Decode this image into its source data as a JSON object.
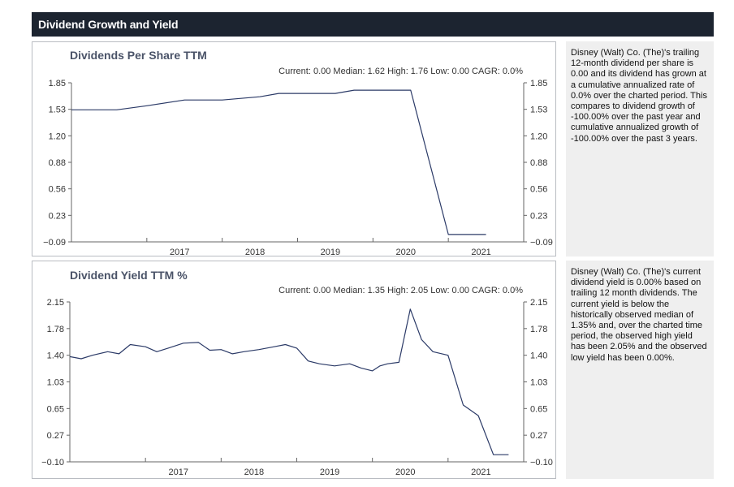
{
  "header": {
    "title": "Dividend Growth and Yield"
  },
  "charts": [
    {
      "title": "Dividends Per Share TTM",
      "stats": "Current: 0.00  Median: 1.62  High: 1.76  Low: 0.00  CAGR: 0.0%",
      "description": "Disney (Walt) Co. (The)'s trailing 12-month dividend per share is 0.00 and its dividend has grown at a cumulative annualized rate of 0.0% over the charted period. This compares to dividend growth of -100.00% over the past year and cumulative annualized growth of -100.00% over the past 3 years."
    },
    {
      "title": "Dividend Yield TTM %",
      "stats": "Current: 0.00  Median: 1.35  High: 2.05  Low: 0.00  CAGR: 0.0%",
      "description": "Disney (Walt) Co. (The)'s current dividend yield is 0.00% based on trailing 12 month dividends. The current yield is below the historically observed median of 1.35% and, over the charted time period, the observed high yield has been 2.05% and the observed low yield has been 0.00%."
    }
  ],
  "chart_data": [
    {
      "type": "line",
      "title": "Dividends Per Share TTM",
      "xlabel": "",
      "ylabel": "",
      "x_tick_labels": [
        "2017",
        "2018",
        "2019",
        "2020",
        "2021"
      ],
      "y_tick_labels": [
        "1.85",
        "1.53",
        "1.20",
        "0.88",
        "0.56",
        "0.23",
        "-0.09"
      ],
      "xlim": [
        2016.0,
        2022.0
      ],
      "ylim": [
        -0.09,
        1.85
      ],
      "line_color": "#2b3a67",
      "series": [
        {
          "x": [
            2016.0,
            2016.3,
            2016.6,
            2017.0,
            2017.5,
            2017.75,
            2018.0,
            2018.5,
            2018.75,
            2019.0,
            2019.25,
            2019.5,
            2019.75,
            2020.0,
            2020.25,
            2020.5,
            2020.75,
            2021.0,
            2021.25,
            2021.5
          ],
          "y": [
            1.52,
            1.52,
            1.52,
            1.57,
            1.64,
            1.64,
            1.64,
            1.68,
            1.72,
            1.72,
            1.72,
            1.72,
            1.76,
            1.76,
            1.76,
            1.76,
            0.88,
            0.0,
            0.0,
            0.0
          ]
        }
      ]
    },
    {
      "type": "line",
      "title": "Dividend Yield TTM %",
      "xlabel": "",
      "ylabel": "",
      "x_tick_labels": [
        "2017",
        "2018",
        "2019",
        "2020",
        "2021"
      ],
      "y_tick_labels": [
        "2.15",
        "1.78",
        "1.40",
        "1.03",
        "0.65",
        "0.27",
        "-0.10"
      ],
      "xlim": [
        2016.0,
        2022.0
      ],
      "ylim": [
        -0.1,
        2.15
      ],
      "line_color": "#2b3a67",
      "series": [
        {
          "x": [
            2016.0,
            2016.15,
            2016.3,
            2016.5,
            2016.65,
            2016.8,
            2017.0,
            2017.15,
            2017.3,
            2017.5,
            2017.7,
            2017.85,
            2018.0,
            2018.15,
            2018.3,
            2018.5,
            2018.7,
            2018.85,
            2019.0,
            2019.15,
            2019.3,
            2019.5,
            2019.7,
            2019.85,
            2020.0,
            2020.1,
            2020.2,
            2020.35,
            2020.5,
            2020.65,
            2020.8,
            2021.0,
            2021.2,
            2021.4,
            2021.6,
            2021.8
          ],
          "y": [
            1.38,
            1.35,
            1.4,
            1.45,
            1.42,
            1.55,
            1.52,
            1.45,
            1.5,
            1.57,
            1.58,
            1.47,
            1.48,
            1.42,
            1.45,
            1.48,
            1.52,
            1.55,
            1.5,
            1.32,
            1.28,
            1.25,
            1.28,
            1.22,
            1.18,
            1.25,
            1.28,
            1.3,
            2.05,
            1.62,
            1.45,
            1.4,
            0.7,
            0.55,
            0.0,
            0.0
          ]
        }
      ]
    }
  ]
}
